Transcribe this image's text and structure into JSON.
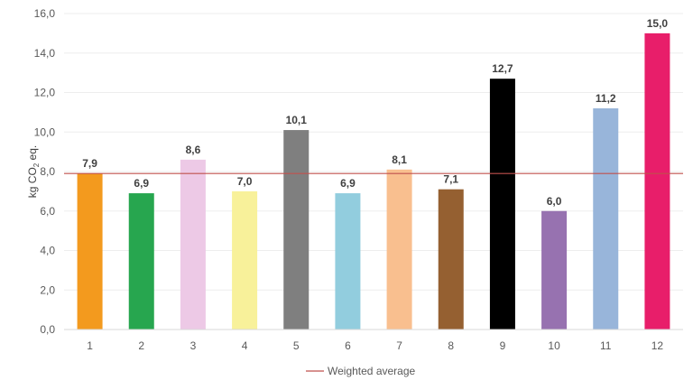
{
  "chart_data": {
    "type": "bar",
    "categories": [
      "1",
      "2",
      "3",
      "4",
      "5",
      "6",
      "7",
      "8",
      "9",
      "10",
      "11",
      "12"
    ],
    "values": [
      7.9,
      6.9,
      8.6,
      7.0,
      10.1,
      6.9,
      8.1,
      7.1,
      12.7,
      6.0,
      11.2,
      15.0
    ],
    "data_labels": [
      "7,9",
      "6,9",
      "8,6",
      "7,0",
      "10,1",
      "6,9",
      "8,1",
      "7,1",
      "12,7",
      "6,0",
      "11,2",
      "15,0"
    ],
    "bar_colors": [
      "#F39A1E",
      "#27A64F",
      "#EDC9E6",
      "#F8F19A",
      "#7F7F7F",
      "#92CDDE",
      "#F9BF8F",
      "#956031",
      "#000000",
      "#9772B0",
      "#98B5DA",
      "#E81E6A"
    ],
    "ylabel_main": "kg CO",
    "ylabel_sub": "2",
    "ylabel_tail": " eq.",
    "ylim": [
      0,
      16
    ],
    "yticks": [
      0,
      2,
      4,
      6,
      8,
      10,
      12,
      14,
      16
    ],
    "ytick_labels": [
      "0,0",
      "2,0",
      "4,0",
      "6,0",
      "8,0",
      "10,0",
      "12,0",
      "14,0",
      "16,0"
    ],
    "weighted_average": 7.9,
    "average_color": "#C0504D",
    "grid": true,
    "legend": {
      "position": "bottom",
      "entries": [
        "Weighted average"
      ]
    }
  }
}
